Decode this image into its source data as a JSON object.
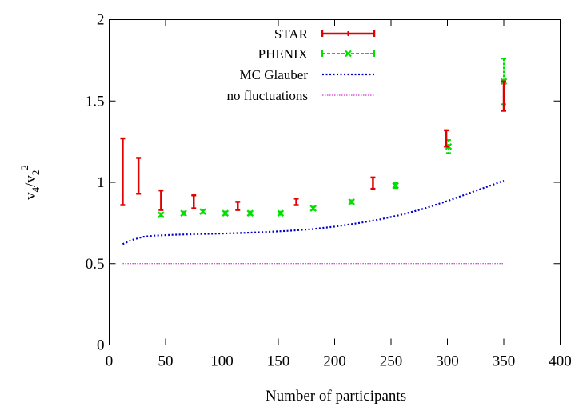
{
  "chart_data": {
    "type": "scatter",
    "xlabel": "Number of participants",
    "ylabel": "v4/v2^2",
    "xlim": [
      0,
      400
    ],
    "ylim": [
      0,
      2
    ],
    "xticks": [
      "0",
      "50",
      "100",
      "150",
      "200",
      "250",
      "300",
      "350",
      "400"
    ],
    "yticks": [
      "0",
      "0.5",
      "1",
      "1.5",
      "2"
    ],
    "grid": false,
    "legend_position": "top-right",
    "series": [
      {
        "name": "STAR",
        "style": "error-bars",
        "color": "#e00000",
        "points": [
          {
            "x": 12,
            "low": 0.86,
            "high": 1.27
          },
          {
            "x": 26,
            "low": 0.93,
            "high": 1.15
          },
          {
            "x": 46,
            "low": 0.83,
            "high": 0.95
          },
          {
            "x": 75,
            "low": 0.84,
            "high": 0.92
          },
          {
            "x": 114,
            "low": 0.83,
            "high": 0.88
          },
          {
            "x": 166,
            "low": 0.86,
            "high": 0.9
          },
          {
            "x": 234,
            "low": 0.96,
            "high": 1.03
          },
          {
            "x": 299,
            "low": 1.22,
            "high": 1.32
          },
          {
            "x": 350,
            "low": 1.44,
            "high": 1.62
          }
        ]
      },
      {
        "name": "PHENIX",
        "style": "points-with-errors",
        "color": "#00e000",
        "points": [
          {
            "x": 46,
            "y": 0.8,
            "err": 0.01
          },
          {
            "x": 66,
            "y": 0.81,
            "err": 0.01
          },
          {
            "x": 83,
            "y": 0.82,
            "err": 0.01
          },
          {
            "x": 103,
            "y": 0.81,
            "err": 0.01
          },
          {
            "x": 125,
            "y": 0.81,
            "err": 0.01
          },
          {
            "x": 152,
            "y": 0.81,
            "err": 0.01
          },
          {
            "x": 181,
            "y": 0.84,
            "err": 0.01
          },
          {
            "x": 215,
            "y": 0.88,
            "err": 0.01
          },
          {
            "x": 254,
            "y": 0.98,
            "err": 0.015
          },
          {
            "x": 301,
            "y": 1.22,
            "err": 0.04
          },
          {
            "x": 350,
            "y": 1.62,
            "err": 0.14
          }
        ]
      },
      {
        "name": "MC Glauber",
        "style": "dotted-line",
        "color": "#0000cc",
        "x": [
          12,
          20,
          30,
          40,
          60,
          80,
          100,
          120,
          140,
          160,
          180,
          200,
          220,
          240,
          260,
          280,
          300,
          320,
          340,
          350
        ],
        "y": [
          0.62,
          0.645,
          0.665,
          0.672,
          0.678,
          0.682,
          0.685,
          0.689,
          0.695,
          0.702,
          0.712,
          0.728,
          0.748,
          0.772,
          0.802,
          0.84,
          0.885,
          0.935,
          0.985,
          1.01
        ]
      },
      {
        "name": "no fluctuations",
        "style": "dotted-line-fine",
        "color": "#cc00cc",
        "x": [
          12,
          350
        ],
        "y": [
          0.5,
          0.5
        ]
      }
    ]
  }
}
